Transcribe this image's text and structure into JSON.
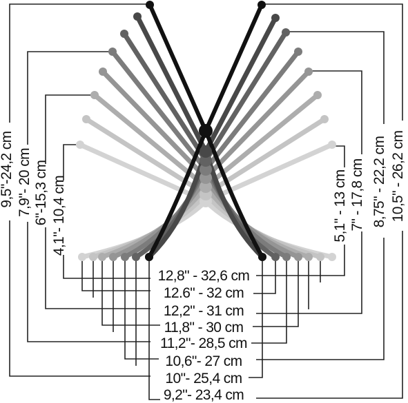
{
  "tools": [
    {
      "shade": "#d3d3d3"
    },
    {
      "shade": "#c4c4c4"
    },
    {
      "shade": "#adadad"
    },
    {
      "shade": "#959595"
    },
    {
      "shade": "#7c7c7c"
    },
    {
      "shade": "#626262"
    },
    {
      "shade": "#484848"
    },
    {
      "shade": "#111111"
    }
  ],
  "sizes_left": [
    "4,1\"- 10,4 cm",
    "6\"-15,3 cm",
    "7,9\"- 20 cm",
    "9,5\"-24,2 cm"
  ],
  "sizes_right": [
    "5,1\" - 13 cm",
    "7\" - 17,8 cm",
    "8,75\" - 22,2 cm",
    "10,5\" - 26,2 cm"
  ],
  "sizes_bottom": [
    "12,8\" - 32,6 cm",
    "12.6\" - 32 cm",
    "12,2\" - 31 cm",
    "11,8\" - 30 cm",
    "11,2\"- 28,5 cm",
    "10,6\"- 27 cm",
    "10\"- 25,4 cm",
    "9,2\"- 23,4 cm"
  ]
}
